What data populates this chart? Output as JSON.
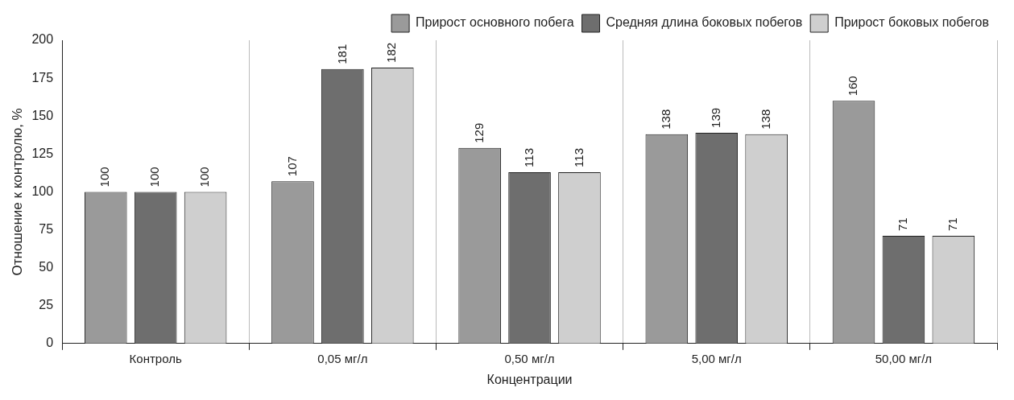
{
  "chart_data": {
    "type": "bar",
    "xlabel": "Концентрации",
    "ylabel": "Отношение к контролю, %",
    "categories": [
      "Контроль",
      "0,05 мг/л",
      "0,50 мг/л",
      "5,00 мг/л",
      "50,00 мг/л"
    ],
    "series": [
      {
        "name": "Прирост основного побега",
        "color": "#9a9a9a",
        "values": [
          100,
          107,
          129,
          138,
          160
        ]
      },
      {
        "name": "Средняя длина боковых побегов",
        "color": "#6e6e6e",
        "values": [
          100,
          181,
          113,
          139,
          71
        ]
      },
      {
        "name": "Прирост боковых побегов",
        "color": "#cfcfcf",
        "values": [
          100,
          182,
          113,
          138,
          71
        ]
      }
    ],
    "ylim": [
      0,
      200
    ],
    "yticks": [
      0,
      25,
      50,
      75,
      100,
      125,
      150,
      175,
      200
    ],
    "grid": "x",
    "legend": "top right",
    "data_labels": true
  }
}
